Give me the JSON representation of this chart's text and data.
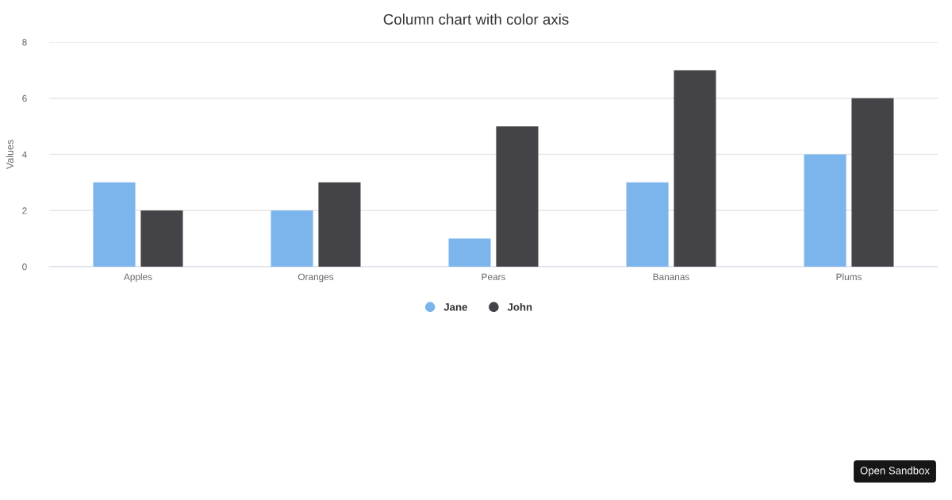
{
  "chart_data": {
    "type": "bar",
    "title": "Column chart with color axis",
    "ylabel": "Values",
    "categories": [
      "Apples",
      "Oranges",
      "Pears",
      "Bananas",
      "Plums"
    ],
    "series": [
      {
        "name": "Jane",
        "color": "#7cb5ec",
        "values": [
          3,
          2,
          1,
          3,
          4
        ]
      },
      {
        "name": "John",
        "color": "#434348",
        "values": [
          2,
          3,
          5,
          7,
          6
        ]
      }
    ],
    "ylim": [
      0,
      8
    ],
    "yticks": [
      0,
      2,
      4,
      6,
      8
    ],
    "grid": "y",
    "legend": "bottom",
    "annotations": [
      "Open Sandbox"
    ]
  }
}
